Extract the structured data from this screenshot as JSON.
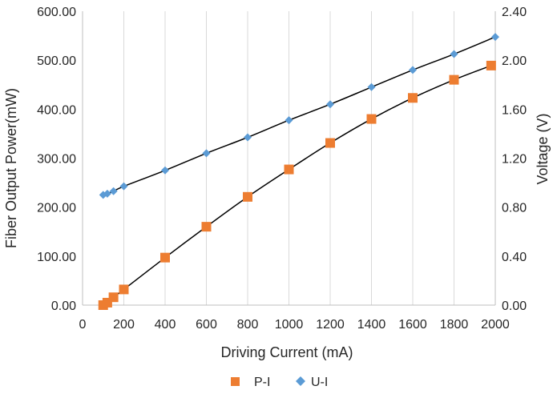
{
  "chart_data": {
    "type": "scatter",
    "xlabel": "Driving Current (mA)",
    "ylabel": "Fiber Output Power(mW)",
    "y2label": "Voltage (V)",
    "xlim": [
      0,
      2000
    ],
    "ylim": [
      0,
      600
    ],
    "y2lim": [
      0,
      2.4
    ],
    "xticks": [
      "0",
      "200",
      "400",
      "600",
      "800",
      "1000",
      "1200",
      "1400",
      "1600",
      "1800",
      "2000"
    ],
    "yticks": [
      "0.00",
      "100.00",
      "200.00",
      "300.00",
      "400.00",
      "500.00",
      "600.00"
    ],
    "y2ticks": [
      "0.00",
      "0.40",
      "0.80",
      "1.20",
      "1.60",
      "2.00",
      "2.40"
    ],
    "grid": "vertical",
    "legend_position": "bottom",
    "series": [
      {
        "name": "P-I",
        "axis": "left",
        "marker": "square",
        "color": "#ed7d31",
        "x": [
          100,
          120,
          150,
          200,
          400,
          600,
          800,
          1000,
          1200,
          1400,
          1600,
          1800,
          1980
        ],
        "y": [
          0,
          5,
          16,
          32,
          97,
          160,
          221,
          277,
          331,
          380,
          423,
          460,
          489
        ]
      },
      {
        "name": "U-I",
        "axis": "right",
        "marker": "diamond",
        "color": "#5b9bd5",
        "x": [
          100,
          120,
          150,
          200,
          400,
          600,
          800,
          1000,
          1200,
          1400,
          1600,
          1800,
          2000
        ],
        "y": [
          0.9,
          0.91,
          0.93,
          0.97,
          1.1,
          1.24,
          1.37,
          1.51,
          1.64,
          1.78,
          1.92,
          2.05,
          2.19
        ]
      }
    ]
  }
}
